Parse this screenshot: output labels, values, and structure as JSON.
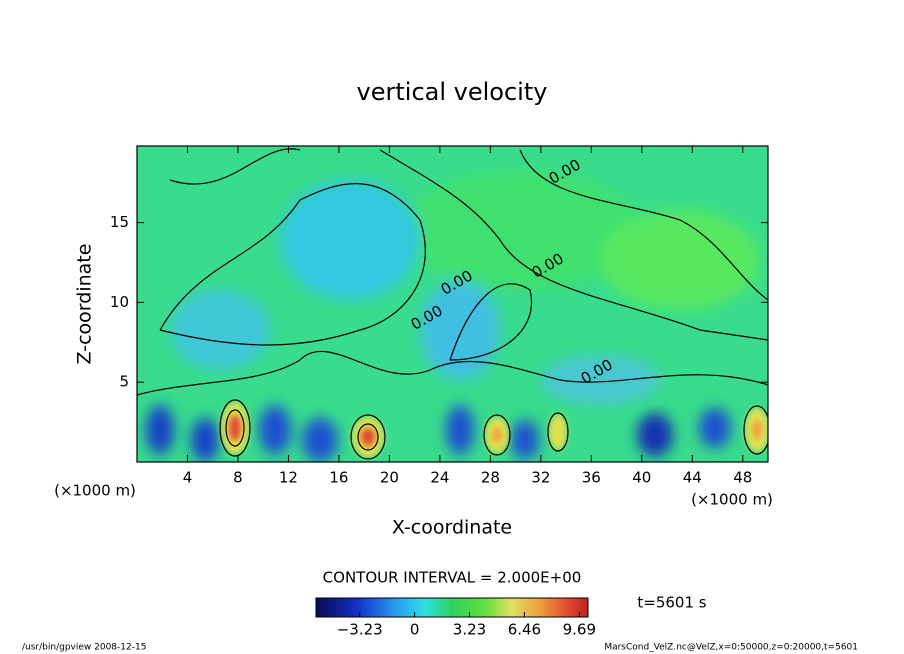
{
  "chart_data": {
    "type": "contour",
    "title": "vertical velocity",
    "x_label": "X-coordinate",
    "y_label": "Z-coordinate",
    "x_unit": "(×1000 m)",
    "y_unit": "(×1000 m)",
    "xlim": [
      0,
      50
    ],
    "xticks": [
      4,
      8,
      12,
      16,
      20,
      24,
      28,
      32,
      36,
      40,
      44,
      48
    ],
    "ylim": [
      0,
      19.8
    ],
    "yticks": [
      5,
      10,
      15
    ],
    "contour_interval": "CONTOUR INTERVAL = 2.000E+00",
    "contour_labels": [
      "0.00",
      "0.00",
      "0.00",
      "0.00",
      "0.00"
    ],
    "colorbar": {
      "lim": [
        -5.8,
        10.2
      ],
      "ticks": [
        {
          "value": -3.23,
          "label": "−3.23"
        },
        0,
        3.23,
        6.46,
        9.69
      ]
    },
    "time_label": "t=5601 s",
    "footer_left": "/usr/bin/gpview   2008-12-15",
    "footer_right": "MarsCond_VelZ.nc@VelZ,x=0:50000,z=0:20000,t=5601"
  }
}
